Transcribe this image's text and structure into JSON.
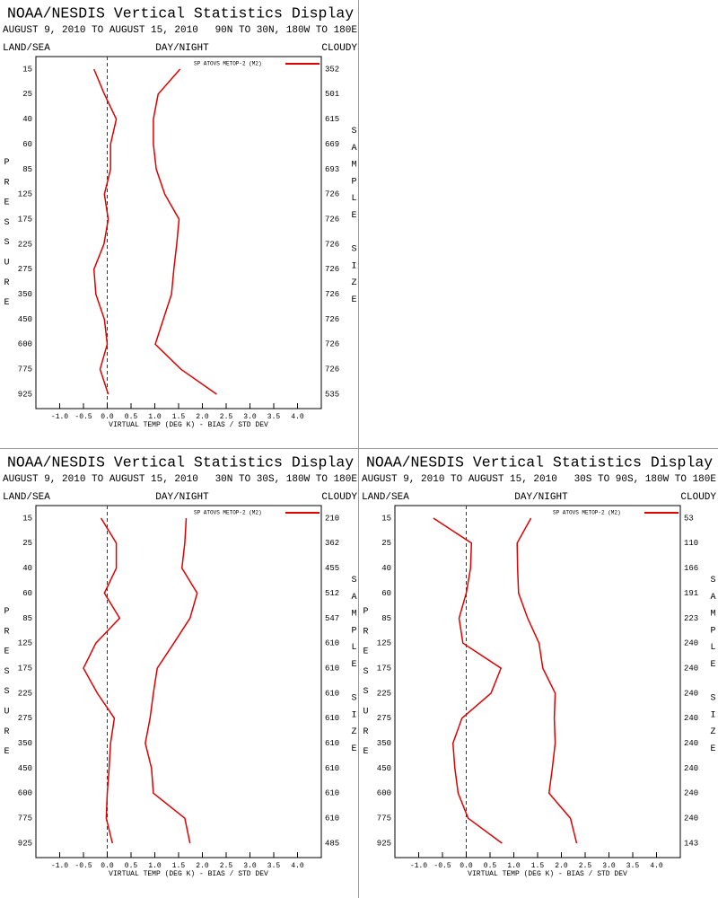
{
  "chart_data": [
    {
      "type": "profile",
      "title": "NOAA/NESDIS Vertical Statistics Display",
      "date_range": "AUGUST 9, 2010 TO AUGUST 15, 2010",
      "region": "90N TO 30N, 180W TO 180E",
      "left_header": "LAND/SEA",
      "center_header": "DAY/NIGHT",
      "right_header": "CLOUDY",
      "y_label": "PRESSURE",
      "y2_label": "SAMPLE SIZE",
      "x_label": "VIRTUAL TEMP (DEG K) - BIAS / STD DEV",
      "categories": [
        "15",
        "25",
        "40",
        "60",
        "85",
        "125",
        "175",
        "225",
        "275",
        "350",
        "450",
        "600",
        "775",
        "925"
      ],
      "sample_size": [
        352,
        501,
        615,
        669,
        693,
        726,
        726,
        726,
        726,
        726,
        726,
        726,
        726,
        535
      ],
      "series": [
        {
          "name": "SP ATOVS METOP-2 (M2)",
          "color": "#e00000",
          "values": [
            -0.28,
            -0.06,
            0.19,
            0.07,
            0.07,
            -0.06,
            0.02,
            -0.07,
            -0.28,
            -0.24,
            -0.06,
            0.0,
            -0.15,
            0.02
          ],
          "std_dev": [
            1.53,
            1.07,
            0.97,
            0.97,
            1.03,
            1.21,
            1.51,
            1.46,
            1.4,
            1.35,
            1.18,
            1.01,
            1.55,
            2.3
          ]
        }
      ],
      "xlim": [
        -1.5,
        4.5
      ],
      "xticks": [
        {
          "value": -1,
          "label": "-1.0"
        },
        {
          "value": -0.5,
          "label": "-0.5"
        },
        {
          "value": 0,
          "label": "0.0"
        },
        {
          "value": 0.5,
          "label": "0.5"
        },
        {
          "value": 1,
          "label": "1.0"
        },
        {
          "value": 1.5,
          "label": "1.5"
        },
        {
          "value": 2,
          "label": "2.0"
        },
        {
          "value": 2.5,
          "label": "2.5"
        },
        {
          "value": 3,
          "label": "3.0"
        },
        {
          "value": 3.5,
          "label": "3.5"
        },
        {
          "value": 4,
          "label": "4.0"
        }
      ]
    },
    {
      "type": "profile",
      "title": "NOAA/NESDIS Vertical Statistics Display",
      "date_range": "AUGUST 9, 2010 TO AUGUST 15, 2010",
      "region": "30N TO 30S, 180W TO 180E",
      "left_header": "LAND/SEA",
      "center_header": "DAY/NIGHT",
      "right_header": "CLOUDY",
      "y_label": "PRESSURE",
      "y2_label": "SAMPLE SIZE",
      "x_label": "VIRTUAL TEMP (DEG K) - BIAS / STD DEV",
      "categories": [
        "15",
        "25",
        "40",
        "60",
        "85",
        "125",
        "175",
        "225",
        "275",
        "350",
        "450",
        "600",
        "775",
        "925"
      ],
      "sample_size": [
        210,
        362,
        455,
        512,
        547,
        610,
        610,
        610,
        610,
        610,
        610,
        610,
        610,
        485
      ],
      "series": [
        {
          "name": "SP ATOVS METOP-2 (M2)",
          "color": "#e00000",
          "values": [
            -0.13,
            0.19,
            0.19,
            -0.06,
            0.26,
            -0.24,
            -0.5,
            -0.21,
            0.15,
            0.07,
            0.04,
            0.0,
            -0.02,
            0.11
          ],
          "std_dev": [
            1.66,
            1.63,
            1.57,
            1.89,
            1.74,
            1.4,
            1.05,
            0.97,
            0.9,
            0.8,
            0.93,
            0.97,
            1.63,
            1.74
          ]
        }
      ],
      "xlim": [
        -1.5,
        4.5
      ],
      "xticks": [
        {
          "value": -1,
          "label": "-1.0"
        },
        {
          "value": -0.5,
          "label": "-0.5"
        },
        {
          "value": 0,
          "label": "0.0"
        },
        {
          "value": 0.5,
          "label": "0.5"
        },
        {
          "value": 1,
          "label": "1.0"
        },
        {
          "value": 1.5,
          "label": "1.5"
        },
        {
          "value": 2,
          "label": "2.0"
        },
        {
          "value": 2.5,
          "label": "2.5"
        },
        {
          "value": 3,
          "label": "3.0"
        },
        {
          "value": 3.5,
          "label": "3.5"
        },
        {
          "value": 4,
          "label": "4.0"
        }
      ]
    },
    {
      "type": "profile",
      "title": "NOAA/NESDIS Vertical Statistics Display",
      "date_range": "AUGUST 9, 2010 TO AUGUST 15, 2010",
      "region": "30S TO 90S, 180W TO 180E",
      "left_header": "LAND/SEA",
      "center_header": "DAY/NIGHT",
      "right_header": "CLOUDY",
      "y_label": "PRESSURE",
      "y2_label": "SAMPLE SIZE",
      "x_label": "VIRTUAL TEMP (DEG K) - BIAS / STD DEV",
      "categories": [
        "15",
        "25",
        "40",
        "60",
        "85",
        "125",
        "175",
        "225",
        "275",
        "350",
        "450",
        "600",
        "775",
        "925"
      ],
      "sample_size": [
        53,
        110,
        166,
        191,
        223,
        240,
        240,
        240,
        240,
        240,
        240,
        240,
        240,
        143
      ],
      "series": [
        {
          "name": "SP ATOVS METOP-2 (M2)",
          "color": "#e00000",
          "values": [
            -0.69,
            0.11,
            0.09,
            0.0,
            -0.15,
            -0.07,
            0.73,
            0.52,
            -0.09,
            -0.28,
            -0.24,
            -0.17,
            0.04,
            0.75
          ],
          "std_dev": [
            1.36,
            1.07,
            1.08,
            1.1,
            1.29,
            1.53,
            1.61,
            1.87,
            1.85,
            1.87,
            1.81,
            1.74,
            2.19,
            2.32
          ]
        }
      ],
      "xlim": [
        -1.5,
        4.5
      ],
      "xticks": [
        {
          "value": -1,
          "label": "-1.0"
        },
        {
          "value": -0.5,
          "label": "-0.5"
        },
        {
          "value": 0,
          "label": "0.0"
        },
        {
          "value": 0.5,
          "label": "0.5"
        },
        {
          "value": 1,
          "label": "1.0"
        },
        {
          "value": 1.5,
          "label": "1.5"
        },
        {
          "value": 2,
          "label": "2.0"
        },
        {
          "value": 2.5,
          "label": "2.5"
        },
        {
          "value": 3,
          "label": "3.0"
        },
        {
          "value": 3.5,
          "label": "3.5"
        },
        {
          "value": 4,
          "label": "4.0"
        }
      ]
    }
  ]
}
